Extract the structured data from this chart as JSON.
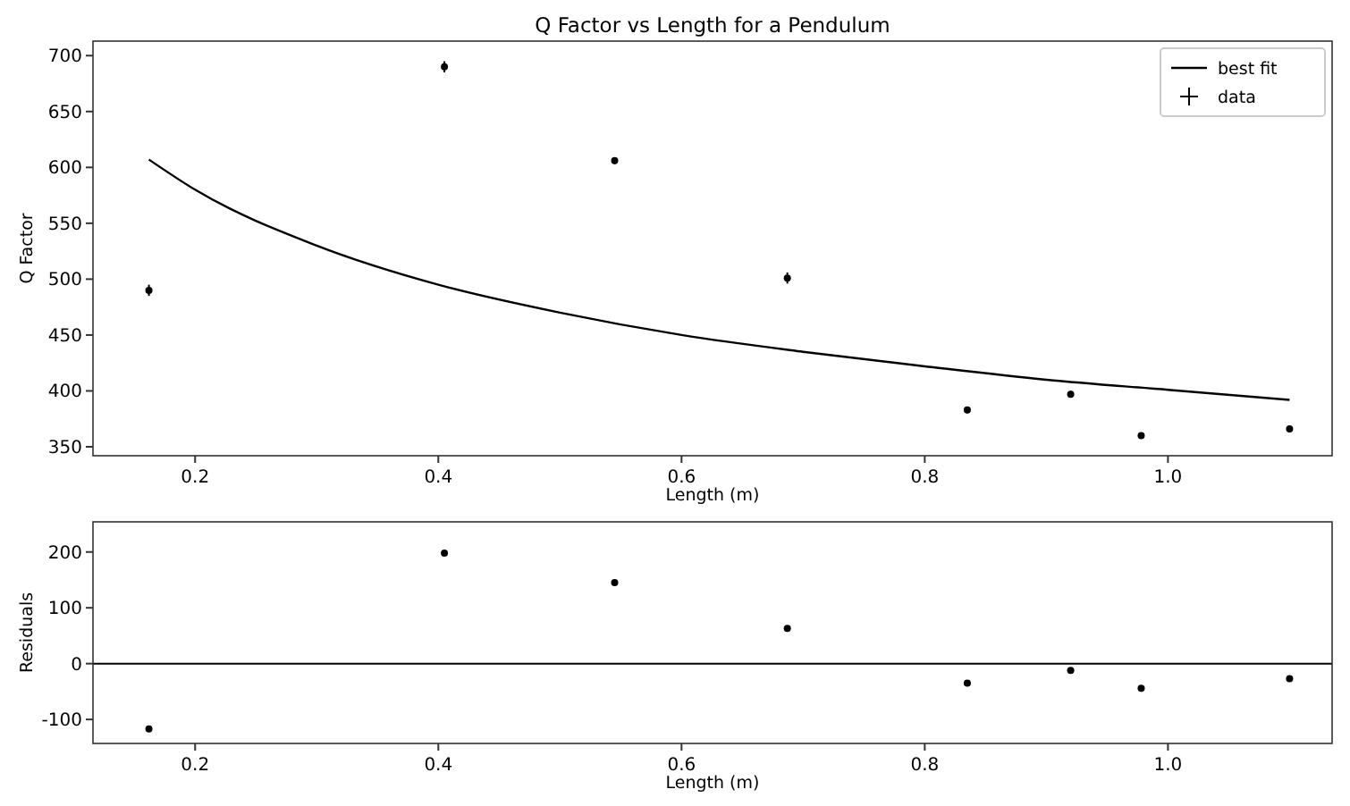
{
  "chart_data": [
    {
      "type": "scatter",
      "title": "Q Factor vs Length for a Pendulum",
      "xlabel": "Length (m)",
      "ylabel": "Q Factor",
      "xlim": [
        0.116,
        1.135
      ],
      "ylim": [
        342,
        713
      ],
      "xticks": [
        {
          "value": 0.2,
          "label": "0.2"
        },
        {
          "value": 0.4,
          "label": "0.4"
        },
        {
          "value": 0.6,
          "label": "0.6"
        },
        {
          "value": 0.8,
          "label": "0.8"
        },
        {
          "value": 1.0,
          "label": "1.0"
        }
      ],
      "yticks": [
        350,
        400,
        450,
        500,
        550,
        600,
        650,
        700
      ],
      "grid": false,
      "legend": "top right",
      "series": [
        {
          "name": "best fit",
          "type": "line",
          "color": "#000000",
          "line_style": "solid",
          "marker": "none",
          "x": [
            0.162,
            0.2,
            0.3,
            0.4,
            0.5,
            0.6,
            0.7,
            0.8,
            0.9,
            1.0,
            1.1
          ],
          "values": [
            607,
            580,
            530,
            495,
            470,
            450,
            435,
            422,
            410,
            401,
            392
          ]
        },
        {
          "name": "data",
          "type": "scatter",
          "color": "#000000",
          "marker": "circle",
          "x": [
            0.162,
            0.405,
            0.545,
            0.687,
            0.835,
            0.92,
            0.978,
            1.1
          ],
          "values": [
            490,
            690,
            606,
            501,
            383,
            397,
            360,
            366
          ],
          "errors": [
            5,
            5,
            3,
            5,
            3,
            3,
            2,
            3
          ]
        }
      ]
    },
    {
      "type": "scatter",
      "xlabel": "Length (m)",
      "ylabel": "Residuals",
      "xlim": [
        0.116,
        1.135
      ],
      "ylim": [
        -143,
        254
      ],
      "xticks": [
        {
          "value": 0.2,
          "label": "0.2"
        },
        {
          "value": 0.4,
          "label": "0.4"
        },
        {
          "value": 0.6,
          "label": "0.6"
        },
        {
          "value": 0.8,
          "label": "0.8"
        },
        {
          "value": 1.0,
          "label": "1.0"
        }
      ],
      "yticks": [
        -100,
        0,
        100,
        200
      ],
      "grid": false,
      "legend": false,
      "ref_lines": [
        {
          "axis": "y",
          "value": 0,
          "color": "#000000"
        }
      ],
      "series": [
        {
          "type": "scatter",
          "color": "#000000",
          "marker": "circle",
          "x": [
            0.162,
            0.405,
            0.545,
            0.687,
            0.835,
            0.92,
            0.978,
            1.1
          ],
          "values": [
            -117,
            198,
            145,
            63,
            -35,
            -12,
            -44,
            -27
          ]
        }
      ]
    }
  ]
}
